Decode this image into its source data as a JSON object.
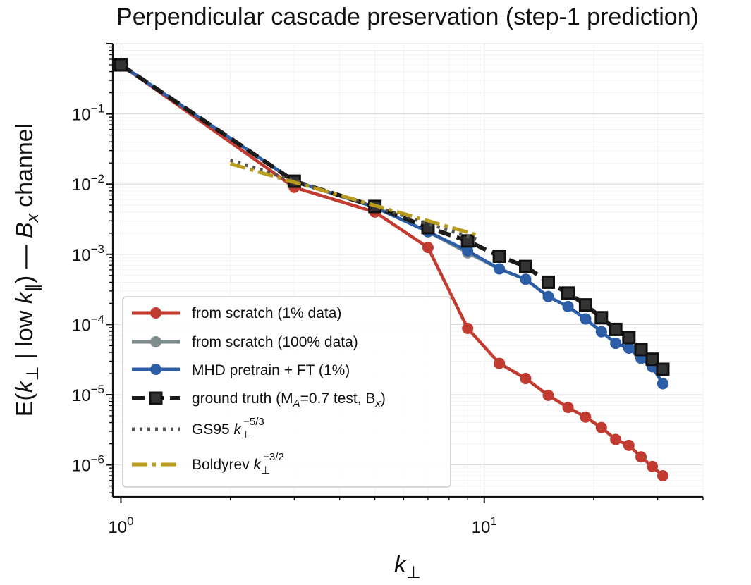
{
  "chart_data": {
    "type": "line",
    "title": "Perpendicular cascade preservation (step-1 prediction)",
    "xlabel": "k⊥",
    "ylabel": "E(k⊥ | low k∥) — Bx channel",
    "xscale": "log",
    "yscale": "log",
    "xlim": [
      0.95,
      40
    ],
    "ylim": [
      3.5e-07,
      1.0
    ],
    "grid": true,
    "legend_position": "lower-left",
    "x_ticks": [
      {
        "value": 1,
        "base": "10",
        "exp": "0"
      },
      {
        "value": 10,
        "base": "10",
        "exp": "1"
      }
    ],
    "y_ticks": [
      {
        "value": 0.1,
        "base": "10",
        "exp": "−1"
      },
      {
        "value": 0.01,
        "base": "10",
        "exp": "−2"
      },
      {
        "value": 0.001,
        "base": "10",
        "exp": "−3"
      },
      {
        "value": 0.0001,
        "base": "10",
        "exp": "−4"
      },
      {
        "value": 1e-05,
        "base": "10",
        "exp": "−5"
      },
      {
        "value": 1e-06,
        "base": "10",
        "exp": "−6"
      }
    ],
    "series": [
      {
        "name": "from scratch (1% data)",
        "color": "#c23b30",
        "style": "solid",
        "marker": "circle",
        "x": [
          1,
          3,
          5,
          7,
          9,
          11,
          13,
          15,
          17,
          19,
          21,
          23,
          25,
          27,
          29,
          31
        ],
        "y": [
          0.5,
          0.009,
          0.004,
          0.00125,
          8.8e-05,
          2.8e-05,
          1.7e-05,
          9.8e-06,
          6.6e-06,
          4.8e-06,
          3.4e-06,
          2.3e-06,
          1.9e-06,
          1.3e-06,
          9.5e-07,
          7e-07
        ]
      },
      {
        "name": "from scratch (100% data)",
        "color": "#7f8c8d",
        "style": "solid",
        "marker": "circle",
        "x": [
          1,
          3,
          5,
          7,
          9,
          11,
          13,
          15,
          17,
          19,
          21,
          23,
          25,
          27,
          29,
          31
        ],
        "y": [
          0.5,
          0.011,
          0.0047,
          0.0021,
          0.00105,
          0.00062,
          0.00044,
          0.00025,
          0.00018,
          0.00012,
          7.9e-05,
          5.4e-05,
          4.6e-05,
          3.3e-05,
          2.5e-05,
          1.45e-05
        ]
      },
      {
        "name": "MHD pretrain + FT (1%)",
        "color": "#2b5ea7",
        "style": "solid",
        "marker": "circle",
        "x": [
          1,
          3,
          5,
          7,
          9,
          11,
          13,
          15,
          17,
          19,
          21,
          23,
          25,
          27,
          29,
          31
        ],
        "y": [
          0.5,
          0.011,
          0.0047,
          0.0021,
          0.00112,
          0.00062,
          0.00044,
          0.00025,
          0.00018,
          0.00012,
          7.9e-05,
          5.4e-05,
          4.6e-05,
          3.3e-05,
          2.5e-05,
          1.43e-05
        ]
      },
      {
        "name": "ground truth (M_A=0.7 test, B_x)",
        "color": "#1a1a1a",
        "style": "dashed",
        "marker": "square",
        "x": [
          1,
          3,
          5,
          7,
          9,
          11,
          13,
          15,
          17,
          19,
          21,
          23,
          25,
          27,
          29,
          31
        ],
        "y": [
          0.5,
          0.011,
          0.0048,
          0.0024,
          0.00155,
          0.00094,
          0.00067,
          0.0004,
          0.00028,
          0.00019,
          0.000125,
          8.5e-05,
          6.5e-05,
          4.4e-05,
          3.2e-05,
          2.3e-05
        ]
      },
      {
        "name": "GS95 k⊥^−5/3",
        "color": "#555555",
        "style": "dotted",
        "marker": "none",
        "x": [
          2,
          9.5
        ],
        "y": [
          0.022,
          0.00165
        ]
      },
      {
        "name": "Boldyrev k⊥^−3/2",
        "color": "#b89a1c",
        "style": "dashdot",
        "marker": "none",
        "x": [
          2,
          9.5
        ],
        "y": [
          0.0195,
          0.0019
        ]
      }
    ]
  },
  "legend": [
    {
      "text": "from scratch (1% data)"
    },
    {
      "text": "from scratch (100% data)"
    },
    {
      "text": "MHD pretrain + FT (1%)"
    },
    {
      "pre": "ground truth (M",
      "sub1": "A",
      "mid": "=0.7 test, B",
      "sub2": "x",
      "post": ")"
    },
    {
      "pre": "GS95 ",
      "sym": "k",
      "sub": "⊥",
      "sup": "−5/3"
    },
    {
      "pre": "Boldyrev ",
      "sym": "k",
      "sub": "⊥",
      "sup": "−3/2"
    }
  ],
  "xlabel_parts": {
    "sym": "k",
    "sub": "⊥"
  },
  "ylabel_parts": {
    "a": "E(",
    "k1": "k",
    "s1": "⊥",
    "b": " | low ",
    "k2": "k",
    "s2": "∥",
    "c": ") — ",
    "B": "B",
    "sx": "x",
    "d": " channel"
  }
}
